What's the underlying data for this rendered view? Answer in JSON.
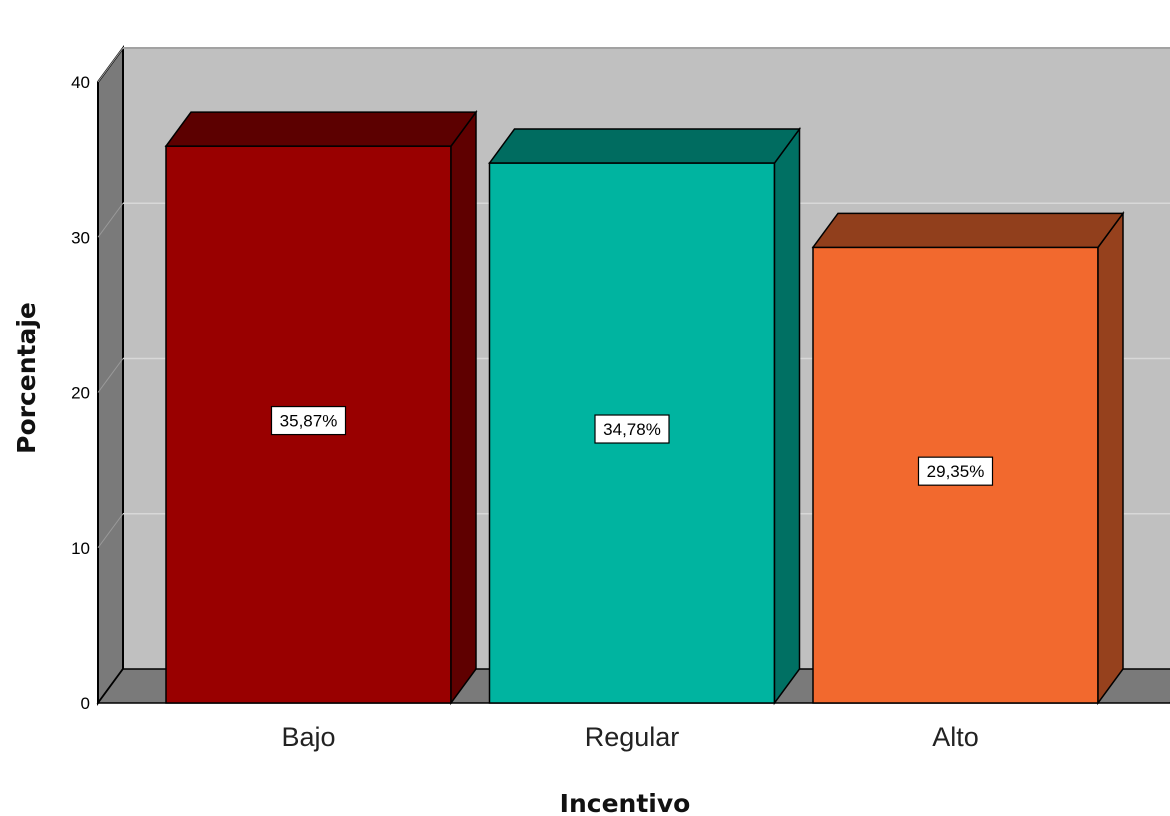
{
  "chart_data": {
    "type": "bar",
    "style": "3d",
    "categories": [
      "Bajo",
      "Regular",
      "Alto"
    ],
    "values": [
      35.87,
      34.78,
      29.35
    ],
    "data_labels": [
      "35,87%",
      "34,78%",
      "29,35%"
    ],
    "colors": [
      "#990000",
      "#00b4a0",
      "#f2692e"
    ],
    "title": "",
    "xlabel": "Incentivo",
    "ylabel": "Porcentaje",
    "ylim": [
      0,
      40
    ],
    "yticks": [
      0,
      10,
      20,
      30,
      40
    ],
    "grid": true,
    "legend": "none"
  }
}
